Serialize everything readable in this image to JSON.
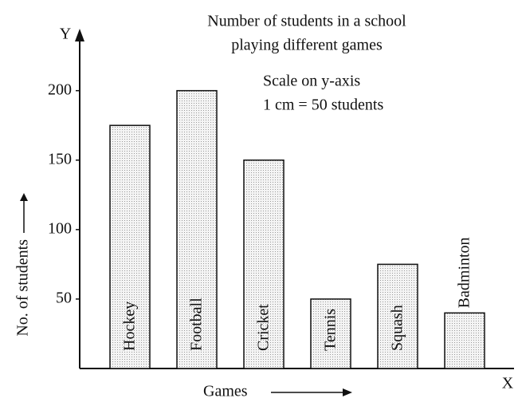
{
  "chart_data": {
    "type": "bar",
    "title_lines": [
      "Number of students in a school",
      "playing different games"
    ],
    "annotations": [
      "Scale on y-axis",
      "1 cm = 50 students"
    ],
    "y_label": "No. of students",
    "x_label": "Games",
    "y_axis_letter": "Y",
    "x_axis_letter": "X",
    "categories": [
      "Hockey",
      "Football",
      "Cricket",
      "Tennis",
      "Squash",
      "Badminton"
    ],
    "values": [
      175,
      200,
      150,
      50,
      75,
      40
    ],
    "color": "#f2f2f2",
    "ylim": [
      0,
      240
    ],
    "yticks": [
      50,
      100,
      150,
      200
    ],
    "grid": false
  }
}
